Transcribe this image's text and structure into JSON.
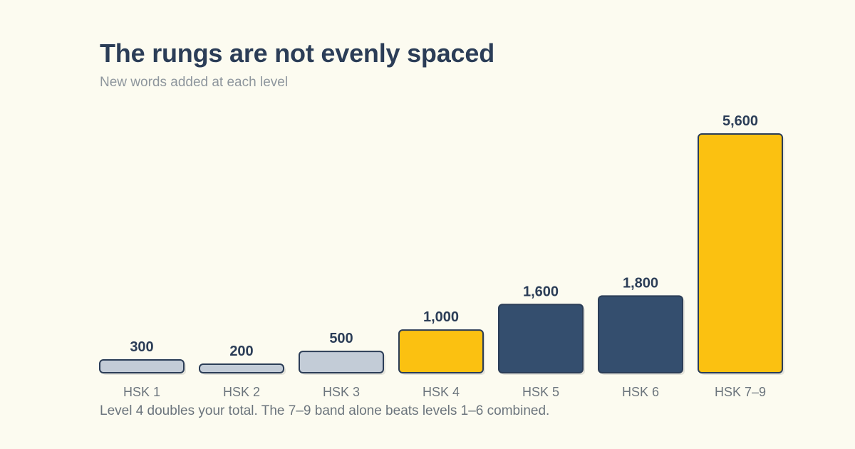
{
  "chart_data": {
    "type": "bar",
    "title": "The rungs are not evenly spaced",
    "subtitle": "New words added at each level",
    "categories": [
      "HSK 1",
      "HSK 2",
      "HSK 3",
      "HSK 4",
      "HSK 5",
      "HSK 6",
      "HSK 7–9"
    ],
    "values": [
      300,
      200,
      500,
      1000,
      1600,
      1800,
      5600
    ],
    "value_labels": [
      "300",
      "200",
      "500",
      "1,000",
      "1,600",
      "1,800",
      "5,600"
    ],
    "bar_colors": [
      "#c3ccd7",
      "#c3ccd7",
      "#c3ccd7",
      "#fbc111",
      "#344e6e",
      "#344e6e",
      "#fbc111"
    ],
    "ylim": [
      0,
      5600
    ],
    "grid": false,
    "legend": "none",
    "annotation": "Level 4 doubles your total. The 7–9 band alone beats levels 1–6 combined."
  },
  "colors": {
    "background": "#fcfbf0",
    "bar_outline": "#2b3d57",
    "label_text": "#2b3d57",
    "tick_text": "#6c757d"
  }
}
